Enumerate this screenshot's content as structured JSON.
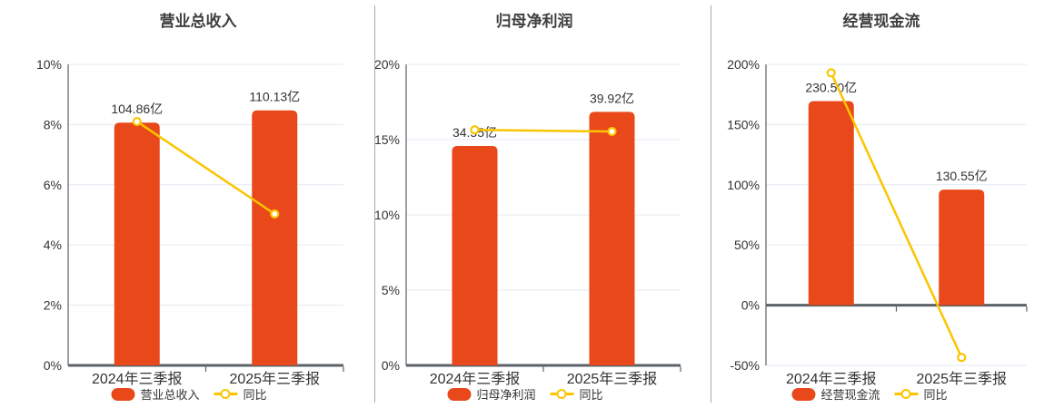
{
  "colors": {
    "bar": "#e8481a",
    "line": "#fbc500",
    "grid": "#e3e9f3",
    "axis": "#5b6268",
    "text": "#333333",
    "title": "#3f3f3f",
    "divider": "#ababab",
    "marker_fill": "#ffffff"
  },
  "chart_data": [
    {
      "type": "bar+line",
      "title": "营业总收入",
      "categories": [
        "2024年三季报",
        "2025年三季报"
      ],
      "bar_series": {
        "name": "营业总收入",
        "unit": "亿",
        "values": [
          104.86,
          110.13
        ],
        "labels": [
          "104.86亿",
          "110.13亿"
        ]
      },
      "line_series": {
        "name": "同比",
        "unit": "%",
        "values_pct": [
          8.1,
          5.03
        ]
      },
      "y_axis": {
        "min": 0,
        "max": 10,
        "tick_step": 2,
        "tick_labels": [
          "0%",
          "2%",
          "4%",
          "6%",
          "8%",
          "10%"
        ]
      },
      "bar_scale_max": 130,
      "grid": true,
      "legend": {
        "bar_label": "营业总收入",
        "line_label": "同比",
        "position": "bottom"
      }
    },
    {
      "type": "bar+line",
      "title": "归母净利润",
      "categories": [
        "2024年三季报",
        "2025年三季报"
      ],
      "bar_series": {
        "name": "归母净利润",
        "unit": "亿",
        "values": [
          34.55,
          39.92
        ],
        "labels": [
          "34.55亿",
          "39.92亿"
        ]
      },
      "line_series": {
        "name": "同比",
        "unit": "%",
        "values_pct": [
          15.65,
          15.54
        ]
      },
      "y_axis": {
        "min": 0,
        "max": 20,
        "tick_step": 5,
        "tick_labels": [
          "0%",
          "5%",
          "10%",
          "15%",
          "20%"
        ]
      },
      "bar_scale_max": 47.4,
      "grid": true,
      "legend": {
        "bar_label": "归母净利润",
        "line_label": "同比",
        "position": "bottom"
      }
    },
    {
      "type": "bar+line",
      "title": "经营现金流",
      "categories": [
        "2024年三季报",
        "2025年三季报"
      ],
      "bar_series": {
        "name": "经营现金流",
        "unit": "亿",
        "values": [
          230.5,
          130.55
        ],
        "labels": [
          "230.50亿",
          "130.55亿"
        ]
      },
      "line_series": {
        "name": "同比",
        "unit": "%",
        "values_pct": [
          193,
          -43.4
        ]
      },
      "y_axis": {
        "min": -50,
        "max": 200,
        "tick_step": 50,
        "tick_labels": [
          "-50%",
          "0%",
          "50%",
          "100%",
          "150%",
          "200%"
        ]
      },
      "bar_scale_max": 272,
      "grid": true,
      "legend": {
        "bar_label": "经营现金流",
        "line_label": "同比",
        "position": "bottom"
      }
    }
  ]
}
